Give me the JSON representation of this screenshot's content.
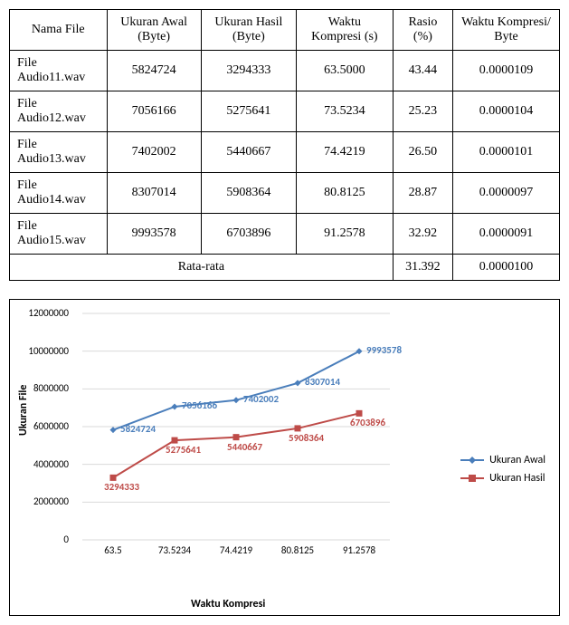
{
  "table": {
    "headers": [
      "Nama File",
      "Ukuran Awal (Byte)",
      "Ukuran Hasil (Byte)",
      "Waktu Kompresi (s)",
      "Rasio (%)",
      "Waktu Kompresi/ Byte"
    ],
    "rows": [
      [
        "File Audio11.wav",
        "5824724",
        "3294333",
        "63.5000",
        "43.44",
        "0.0000109"
      ],
      [
        "File Audio12.wav",
        "7056166",
        "5275641",
        "73.5234",
        "25.23",
        "0.0000104"
      ],
      [
        "File Audio13.wav",
        "7402002",
        "5440667",
        "74.4219",
        "26.50",
        "0.0000101"
      ],
      [
        "File Audio14.wav",
        "8307014",
        "5908364",
        "80.8125",
        "28.87",
        "0.0000097"
      ],
      [
        "File Audio15.wav",
        "9993578",
        "6703896",
        "91.2578",
        "32.92",
        "0.0000091"
      ]
    ],
    "footer_label": "Rata-rata",
    "footer_values": [
      "31.392",
      "0.0000100"
    ]
  },
  "chart": {
    "type": "line",
    "x_categories": [
      "63.5",
      "73.5234",
      "74.4219",
      "80.8125",
      "91.2578"
    ],
    "series": [
      {
        "name": "Ukuran Awal",
        "color": "#4a7ebb",
        "marker": "diamond",
        "values": [
          5824724,
          7056166,
          7402002,
          8307014,
          9993578
        ]
      },
      {
        "name": "Ukuran Hasil",
        "color": "#be4b48",
        "marker": "square",
        "values": [
          3294333,
          5275641,
          5440667,
          5908364,
          6703896
        ]
      }
    ],
    "y_ticks": [
      0,
      2000000,
      4000000,
      6000000,
      8000000,
      10000000,
      12000000
    ],
    "ylim": [
      0,
      12000000
    ],
    "ylabel": "Ukuran File",
    "xlabel": "Waktu Kompresi",
    "background": "#ffffff",
    "grid_color": "#d9d9d9",
    "label_fontsize": 11,
    "axis_title_fontsize": 12,
    "line_width": 2,
    "marker_size": 7
  }
}
